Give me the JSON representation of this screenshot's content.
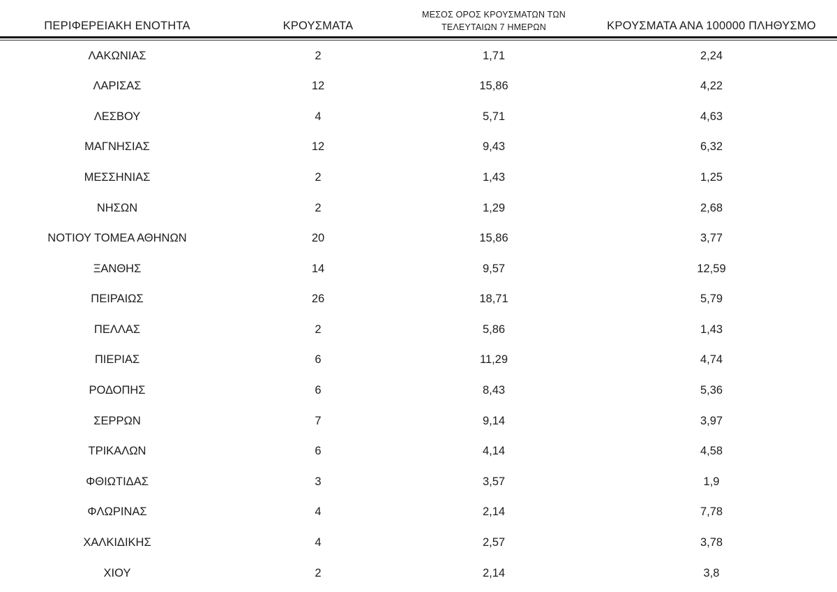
{
  "table": {
    "headers": [
      "ΠΕΡΙΦΕΡΕΙΑΚΗ ΕΝΟΤΗΤΑ",
      "ΚΡΟΥΣΜΑΤΑ",
      "ΜΕΣΟΣ ΟΡΟΣ ΚΡΟΥΣΜΑΤΩΝ ΤΩΝ\nΤΕΛΕΥΤΑΙΩΝ 7 ΗΜΕΡΩΝ",
      "ΚΡΟΥΣΜΑΤΑ ΑΝΑ 100000 ΠΛΗΘΥΣΜΟ"
    ],
    "rows": [
      {
        "region": "ΛΑΚΩΝΙΑΣ",
        "cases": "2",
        "avg_7day": "1,71",
        "per_100k": "2,24"
      },
      {
        "region": "ΛΑΡΙΣΑΣ",
        "cases": "12",
        "avg_7day": "15,86",
        "per_100k": "4,22"
      },
      {
        "region": "ΛΕΣΒΟΥ",
        "cases": "4",
        "avg_7day": "5,71",
        "per_100k": "4,63"
      },
      {
        "region": "ΜΑΓΝΗΣΙΑΣ",
        "cases": "12",
        "avg_7day": "9,43",
        "per_100k": "6,32"
      },
      {
        "region": "ΜΕΣΣΗΝΙΑΣ",
        "cases": "2",
        "avg_7day": "1,43",
        "per_100k": "1,25"
      },
      {
        "region": "ΝΗΣΩΝ",
        "cases": "2",
        "avg_7day": "1,29",
        "per_100k": "2,68"
      },
      {
        "region": "ΝΟΤΙΟΥ ΤΟΜΕΑ ΑΘΗΝΩΝ",
        "cases": "20",
        "avg_7day": "15,86",
        "per_100k": "3,77"
      },
      {
        "region": "ΞΑΝΘΗΣ",
        "cases": "14",
        "avg_7day": "9,57",
        "per_100k": "12,59"
      },
      {
        "region": "ΠΕΙΡΑΙΩΣ",
        "cases": "26",
        "avg_7day": "18,71",
        "per_100k": "5,79"
      },
      {
        "region": "ΠΕΛΛΑΣ",
        "cases": "2",
        "avg_7day": "5,86",
        "per_100k": "1,43"
      },
      {
        "region": "ΠΙΕΡΙΑΣ",
        "cases": "6",
        "avg_7day": "11,29",
        "per_100k": "4,74"
      },
      {
        "region": "ΡΟΔΟΠΗΣ",
        "cases": "6",
        "avg_7day": "8,43",
        "per_100k": "5,36"
      },
      {
        "region": "ΣΕΡΡΩΝ",
        "cases": "7",
        "avg_7day": "9,14",
        "per_100k": "3,97"
      },
      {
        "region": "ΤΡΙΚΑΛΩΝ",
        "cases": "6",
        "avg_7day": "4,14",
        "per_100k": "4,58"
      },
      {
        "region": "ΦΘΙΩΤΙΔΑΣ",
        "cases": "3",
        "avg_7day": "3,57",
        "per_100k": "1,9"
      },
      {
        "region": "ΦΛΩΡΙΝΑΣ",
        "cases": "4",
        "avg_7day": "2,14",
        "per_100k": "7,78"
      },
      {
        "region": "ΧΑΛΚΙΔΙΚΗΣ",
        "cases": "4",
        "avg_7day": "2,57",
        "per_100k": "3,78"
      },
      {
        "region": "ΧΙΟΥ",
        "cases": "2",
        "avg_7day": "2,14",
        "per_100k": "3,8"
      }
    ],
    "colors": {
      "text": "#1d1d1d",
      "thick_rule": "#131313",
      "thin_rule": "#2e2e2e",
      "background": "#ffffff"
    }
  }
}
